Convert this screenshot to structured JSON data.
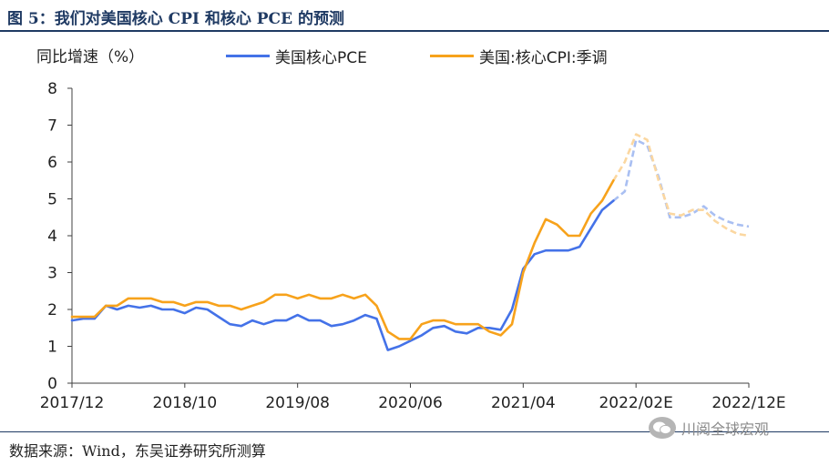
{
  "figure": {
    "title": "图 5：我们对美国核心 CPI 和核心 PCE 的预测",
    "source": "数据来源：Wind，东吴证券研究所测算",
    "watermark": "川阅全球宏观",
    "watermark_icon": "wechat-icon"
  },
  "chart_data": {
    "type": "line",
    "title": "",
    "ylabel": "同比增速（%）",
    "xlabel": "",
    "ylim": [
      0,
      8
    ],
    "yticks": [
      0,
      1,
      2,
      3,
      4,
      5,
      6,
      7,
      8
    ],
    "xlim": [
      "2017-12",
      "2022-12"
    ],
    "xticks": [
      "2017/12",
      "2018/10",
      "2019/08",
      "2020/06",
      "2021/04",
      "2022/02E",
      "2022/12E"
    ],
    "grid": false,
    "legend_position": "top",
    "series": [
      {
        "name": "美国核心PCE",
        "color": "#4472e8",
        "forecast_color": "#a9bff2",
        "actual": {
          "x": [
            "2017-12",
            "2018-01",
            "2018-02",
            "2018-03",
            "2018-04",
            "2018-05",
            "2018-06",
            "2018-07",
            "2018-08",
            "2018-09",
            "2018-10",
            "2018-11",
            "2018-12",
            "2019-01",
            "2019-02",
            "2019-03",
            "2019-04",
            "2019-05",
            "2019-06",
            "2019-07",
            "2019-08",
            "2019-09",
            "2019-10",
            "2019-11",
            "2019-12",
            "2020-01",
            "2020-02",
            "2020-03",
            "2020-04",
            "2020-05",
            "2020-06",
            "2020-07",
            "2020-08",
            "2020-09",
            "2020-10",
            "2020-11",
            "2020-12",
            "2021-01",
            "2021-02",
            "2021-03",
            "2021-04",
            "2021-05",
            "2021-06",
            "2021-07",
            "2021-08",
            "2021-09",
            "2021-10",
            "2021-11",
            "2021-12"
          ],
          "y": [
            1.7,
            1.75,
            1.75,
            2.1,
            2.0,
            2.1,
            2.05,
            2.1,
            2.0,
            2.0,
            1.9,
            2.05,
            2.0,
            1.8,
            1.6,
            1.55,
            1.7,
            1.6,
            1.7,
            1.7,
            1.85,
            1.7,
            1.7,
            1.55,
            1.6,
            1.7,
            1.85,
            1.75,
            0.9,
            1.0,
            1.15,
            1.3,
            1.5,
            1.55,
            1.4,
            1.35,
            1.5,
            1.5,
            1.45,
            2.0,
            3.1,
            3.5,
            3.6,
            3.6,
            3.6,
            3.7,
            4.2,
            4.7,
            4.95
          ]
        },
        "forecast": {
          "x": [
            "2021-12",
            "2022-01",
            "2022-02",
            "2022-03",
            "2022-04",
            "2022-05",
            "2022-06",
            "2022-07",
            "2022-08",
            "2022-09",
            "2022-10",
            "2022-11",
            "2022-12"
          ],
          "y": [
            4.95,
            5.2,
            6.6,
            6.45,
            5.6,
            4.5,
            4.5,
            4.6,
            4.8,
            4.55,
            4.4,
            4.3,
            4.25
          ]
        }
      },
      {
        "name": "美国:核心CPI:季调",
        "color": "#f7a21b",
        "forecast_color": "#fbd7a0",
        "actual": {
          "x": [
            "2017-12",
            "2018-01",
            "2018-02",
            "2018-03",
            "2018-04",
            "2018-05",
            "2018-06",
            "2018-07",
            "2018-08",
            "2018-09",
            "2018-10",
            "2018-11",
            "2018-12",
            "2019-01",
            "2019-02",
            "2019-03",
            "2019-04",
            "2019-05",
            "2019-06",
            "2019-07",
            "2019-08",
            "2019-09",
            "2019-10",
            "2019-11",
            "2019-12",
            "2020-01",
            "2020-02",
            "2020-03",
            "2020-04",
            "2020-05",
            "2020-06",
            "2020-07",
            "2020-08",
            "2020-09",
            "2020-10",
            "2020-11",
            "2020-12",
            "2021-01",
            "2021-02",
            "2021-03",
            "2021-04",
            "2021-05",
            "2021-06",
            "2021-07",
            "2021-08",
            "2021-09",
            "2021-10",
            "2021-11",
            "2021-12"
          ],
          "y": [
            1.8,
            1.8,
            1.8,
            2.1,
            2.1,
            2.3,
            2.3,
            2.3,
            2.2,
            2.2,
            2.1,
            2.2,
            2.2,
            2.1,
            2.1,
            2.0,
            2.1,
            2.2,
            2.4,
            2.4,
            2.3,
            2.4,
            2.3,
            2.3,
            2.4,
            2.3,
            2.4,
            2.1,
            1.4,
            1.2,
            1.2,
            1.6,
            1.7,
            1.7,
            1.6,
            1.6,
            1.6,
            1.4,
            1.3,
            1.6,
            3.0,
            3.8,
            4.45,
            4.3,
            4.0,
            4.0,
            4.6,
            4.95,
            5.5
          ]
        },
        "forecast": {
          "x": [
            "2021-12",
            "2022-01",
            "2022-02",
            "2022-03",
            "2022-04",
            "2022-05",
            "2022-06",
            "2022-07",
            "2022-08",
            "2022-09",
            "2022-10",
            "2022-11",
            "2022-12"
          ],
          "y": [
            5.5,
            6.0,
            6.75,
            6.6,
            5.5,
            4.6,
            4.55,
            4.7,
            4.7,
            4.4,
            4.2,
            4.05,
            4.0
          ]
        }
      }
    ]
  }
}
